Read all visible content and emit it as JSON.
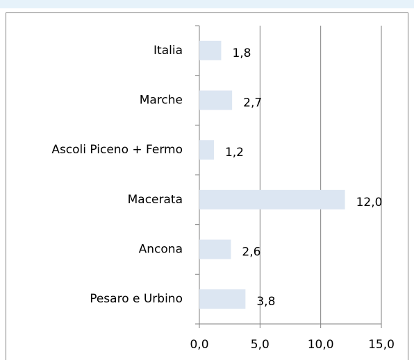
{
  "chart_data": {
    "type": "bar",
    "orientation": "horizontal",
    "categories": [
      "Italia",
      "Marche",
      "Ascoli Piceno + Fermo",
      "Macerata",
      "Ancona",
      "Pesaro e Urbino"
    ],
    "values": [
      1.8,
      2.7,
      1.2,
      12.0,
      2.6,
      3.8
    ],
    "value_labels": [
      "1,8",
      "2,7",
      "1,2",
      "12,0",
      "2,6",
      "3,8"
    ],
    "color": "#dce6f2",
    "xlim": [
      0,
      15
    ],
    "xticks": [
      {
        "value": 0,
        "label": "0,0"
      },
      {
        "value": 5,
        "label": "5,0"
      },
      {
        "value": 10,
        "label": "10,0"
      },
      {
        "value": 15,
        "label": "15,0"
      }
    ],
    "grid": true
  }
}
